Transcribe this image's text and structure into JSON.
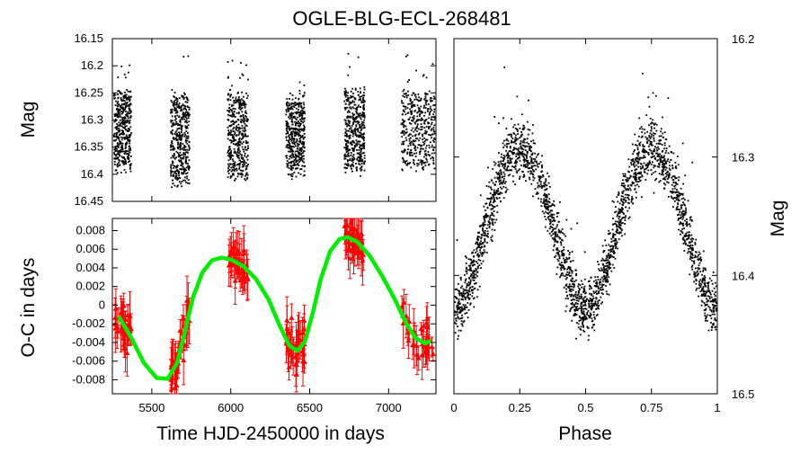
{
  "chart_data": [
    {
      "id": "lightcurve",
      "type": "scatter",
      "title": "OGLE-BLG-ECL-268481",
      "xlabel": "",
      "ylabel": "Mag",
      "xlim": [
        5250,
        7300
      ],
      "ylim": [
        16.45,
        16.15
      ],
      "y_inverted": true,
      "yticks": [
        "16.15",
        "16.2",
        "16.25",
        "16.3",
        "16.35",
        "16.4",
        "16.45"
      ],
      "marker_color": "#000000",
      "seasons": [
        {
          "start": 5260,
          "end": 5370,
          "mag_center": 16.32,
          "mag_spread": 0.07
        },
        {
          "start": 5620,
          "end": 5740,
          "mag_center": 16.335,
          "mag_spread": 0.08
        },
        {
          "start": 5980,
          "end": 6110,
          "mag_center": 16.33,
          "mag_spread": 0.08
        },
        {
          "start": 6350,
          "end": 6470,
          "mag_center": 16.33,
          "mag_spread": 0.07
        },
        {
          "start": 6720,
          "end": 6850,
          "mag_center": 16.32,
          "mag_spread": 0.075
        },
        {
          "start": 7080,
          "end": 7300,
          "mag_center": 16.32,
          "mag_spread": 0.07
        }
      ]
    },
    {
      "id": "oc",
      "type": "scatter",
      "xlabel": "Time HJD-2450000 in days",
      "ylabel": "O-C in days",
      "xlim": [
        5250,
        7300
      ],
      "ylim": [
        -0.0095,
        0.0093
      ],
      "xticks": [
        "5500",
        "6000",
        "6500",
        "7000"
      ],
      "yticks": [
        "0.008",
        "0.006",
        "0.004",
        "0.002",
        "0",
        "-0.002",
        "-0.004",
        "-0.006",
        "-0.008"
      ],
      "data_color": "#ff0000",
      "fit_color": "#00ee00",
      "fit_points": [
        {
          "t": 5290,
          "oc": -0.0012
        },
        {
          "t": 5370,
          "oc": -0.0035
        },
        {
          "t": 5450,
          "oc": -0.0062
        },
        {
          "t": 5530,
          "oc": -0.0078
        },
        {
          "t": 5600,
          "oc": -0.0079
        },
        {
          "t": 5660,
          "oc": -0.0062
        },
        {
          "t": 5710,
          "oc": -0.0028
        },
        {
          "t": 5760,
          "oc": 0.0008
        },
        {
          "t": 5820,
          "oc": 0.0035
        },
        {
          "t": 5880,
          "oc": 0.0048
        },
        {
          "t": 5940,
          "oc": 0.0051
        },
        {
          "t": 6000,
          "oc": 0.0049
        },
        {
          "t": 6080,
          "oc": 0.0042
        },
        {
          "t": 6160,
          "oc": 0.0028
        },
        {
          "t": 6240,
          "oc": 0.0006
        },
        {
          "t": 6310,
          "oc": -0.0022
        },
        {
          "t": 6370,
          "oc": -0.0043
        },
        {
          "t": 6420,
          "oc": -0.0049
        },
        {
          "t": 6470,
          "oc": -0.0039
        },
        {
          "t": 6520,
          "oc": -0.0008
        },
        {
          "t": 6570,
          "oc": 0.0028
        },
        {
          "t": 6630,
          "oc": 0.0058
        },
        {
          "t": 6690,
          "oc": 0.0071
        },
        {
          "t": 6740,
          "oc": 0.0073
        },
        {
          "t": 6800,
          "oc": 0.0068
        },
        {
          "t": 6880,
          "oc": 0.0053
        },
        {
          "t": 6960,
          "oc": 0.0031
        },
        {
          "t": 7040,
          "oc": 0.0006
        },
        {
          "t": 7110,
          "oc": -0.0019
        },
        {
          "t": 7170,
          "oc": -0.0035
        },
        {
          "t": 7230,
          "oc": -0.0041
        },
        {
          "t": 7270,
          "oc": -0.0038
        }
      ]
    },
    {
      "id": "phase",
      "type": "scatter",
      "xlabel": "Phase",
      "ylabel": "Mag",
      "xlim": [
        0,
        1
      ],
      "ylim": [
        16.5,
        16.2
      ],
      "y_inverted": true,
      "xticks": [
        "0",
        "0.25",
        "0.5",
        "0.75",
        "1"
      ],
      "yticks": [
        "16.2",
        "16.3",
        "16.4",
        "16.5"
      ],
      "marker_color": "#000000",
      "model": {
        "mean_mag": 16.355,
        "amplitude": 0.062,
        "primary_min_extra": 0.012,
        "scatter": 0.022
      }
    }
  ]
}
